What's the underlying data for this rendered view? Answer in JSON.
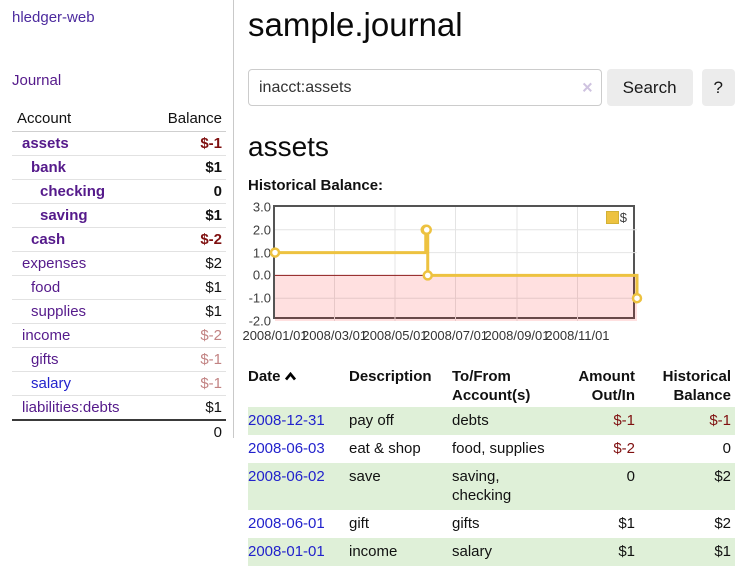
{
  "app": {
    "brand": "hledger-web"
  },
  "colors": {
    "brand": "#4c2a9e",
    "link": "#2222cc",
    "visited": "#551a8b",
    "negative_strong": "#7f1010",
    "negative_soft": "#c28383",
    "row_shade": "#dff0d8",
    "chart_gold": "#edc240"
  },
  "sidebar": {
    "journal_link": "Journal",
    "account_header": "Account",
    "balance_header": "Balance",
    "accounts": [
      {
        "name": "assets",
        "level": 1,
        "bold": true,
        "balance": "$-1",
        "balance_class": "neg-strong",
        "link_style": "visited"
      },
      {
        "name": "bank",
        "level": 2,
        "bold": true,
        "balance": "$1",
        "balance_class": "",
        "link_style": "visited"
      },
      {
        "name": "checking",
        "level": 3,
        "bold": true,
        "balance": "0",
        "balance_class": "",
        "link_style": "visited"
      },
      {
        "name": "saving",
        "level": 3,
        "bold": true,
        "balance": "$1",
        "balance_class": "",
        "link_style": "visited"
      },
      {
        "name": "cash",
        "level": 2,
        "bold": true,
        "balance": "$-2",
        "balance_class": "neg-strong",
        "link_style": "visited"
      },
      {
        "name": "expenses",
        "level": 1,
        "bold": false,
        "balance": "$2",
        "balance_class": "",
        "link_style": "visited"
      },
      {
        "name": "food",
        "level": 2,
        "bold": false,
        "balance": "$1",
        "balance_class": "",
        "link_style": "visited"
      },
      {
        "name": "supplies",
        "level": 2,
        "bold": false,
        "balance": "$1",
        "balance_class": "",
        "link_style": "visited"
      },
      {
        "name": "income",
        "level": 1,
        "bold": false,
        "balance": "$-2",
        "balance_class": "neg-soft",
        "link_style": "visited"
      },
      {
        "name": "gifts",
        "level": 2,
        "bold": false,
        "balance": "$-1",
        "balance_class": "neg-soft",
        "link_style": "visited"
      },
      {
        "name": "salary",
        "level": 2,
        "bold": false,
        "balance": "$-1",
        "balance_class": "neg-soft",
        "link_style": "unvisited"
      },
      {
        "name": "liabilities:debts",
        "level": 1,
        "bold": false,
        "balance": "$1",
        "balance_class": "",
        "link_style": "visited"
      }
    ],
    "total": "0"
  },
  "header": {
    "title": "sample.journal"
  },
  "search": {
    "value": "inacct:assets",
    "clear_icon": "×",
    "button_label": "Search",
    "help_label": "?"
  },
  "account_page": {
    "heading": "assets",
    "chart_label": "Historical Balance:"
  },
  "chart_data": {
    "type": "line",
    "style": "step",
    "title": "Historical Balance:",
    "legend": "$",
    "legend_position": "top-right",
    "grid": true,
    "grid_color": "#e4e4e4",
    "ylim": [
      -2,
      3
    ],
    "x_range": [
      "2008-01-01",
      "2008-12-31"
    ],
    "y_ticks": [
      {
        "value": 3,
        "label": "3.0"
      },
      {
        "value": 2,
        "label": "2.0"
      },
      {
        "value": 1,
        "label": "1.0"
      },
      {
        "value": 0,
        "label": "0.0"
      },
      {
        "value": -1,
        "label": "-1.0"
      },
      {
        "value": -2,
        "label": "-2.0"
      }
    ],
    "x_ticks": [
      {
        "date": "2008-01-01",
        "label": "2008/01/01"
      },
      {
        "date": "2008-03-01",
        "label": "2008/03/01"
      },
      {
        "date": "2008-05-01",
        "label": "2008/05/01"
      },
      {
        "date": "2008-07-01",
        "label": "2008/07/01"
      },
      {
        "date": "2008-09-01",
        "label": "2008/09/01"
      },
      {
        "date": "2008-11-01",
        "label": "2008/11/01"
      }
    ],
    "series": [
      {
        "name": "$",
        "color": "#edc240",
        "points": [
          [
            "2008-01-01",
            1
          ],
          [
            "2008-06-01",
            2
          ],
          [
            "2008-06-02",
            2
          ],
          [
            "2008-06-03",
            0
          ],
          [
            "2008-12-31",
            -1
          ]
        ]
      }
    ],
    "negative_region_fill": "#ff0000",
    "negative_region_opacity": 0.12,
    "zero_line_color": "#8b1a1a"
  },
  "register": {
    "columns": [
      "Date",
      "Description",
      "To/From Account(s)",
      "Amount Out/In",
      "Historical Balance"
    ],
    "rows": [
      {
        "date": "2008-12-31",
        "description": "pay off",
        "accounts": "debts",
        "amount": "$-1",
        "amount_negative": true,
        "balance": "$-1",
        "balance_negative": true,
        "shaded": true
      },
      {
        "date": "2008-06-03",
        "description": "eat & shop",
        "accounts": "food, supplies",
        "amount": "$-2",
        "amount_negative": true,
        "balance": "0",
        "balance_negative": false,
        "shaded": false
      },
      {
        "date": "2008-06-02",
        "description": "save",
        "accounts": "saving, checking",
        "amount": "0",
        "amount_negative": false,
        "balance": "$2",
        "balance_negative": false,
        "shaded": true
      },
      {
        "date": "2008-06-01",
        "description": "gift",
        "accounts": "gifts",
        "amount": "$1",
        "amount_negative": false,
        "balance": "$2",
        "balance_negative": false,
        "shaded": false
      },
      {
        "date": "2008-01-01",
        "description": "income",
        "accounts": "salary",
        "amount": "$1",
        "amount_negative": false,
        "balance": "$1",
        "balance_negative": false,
        "shaded": true
      }
    ]
  }
}
